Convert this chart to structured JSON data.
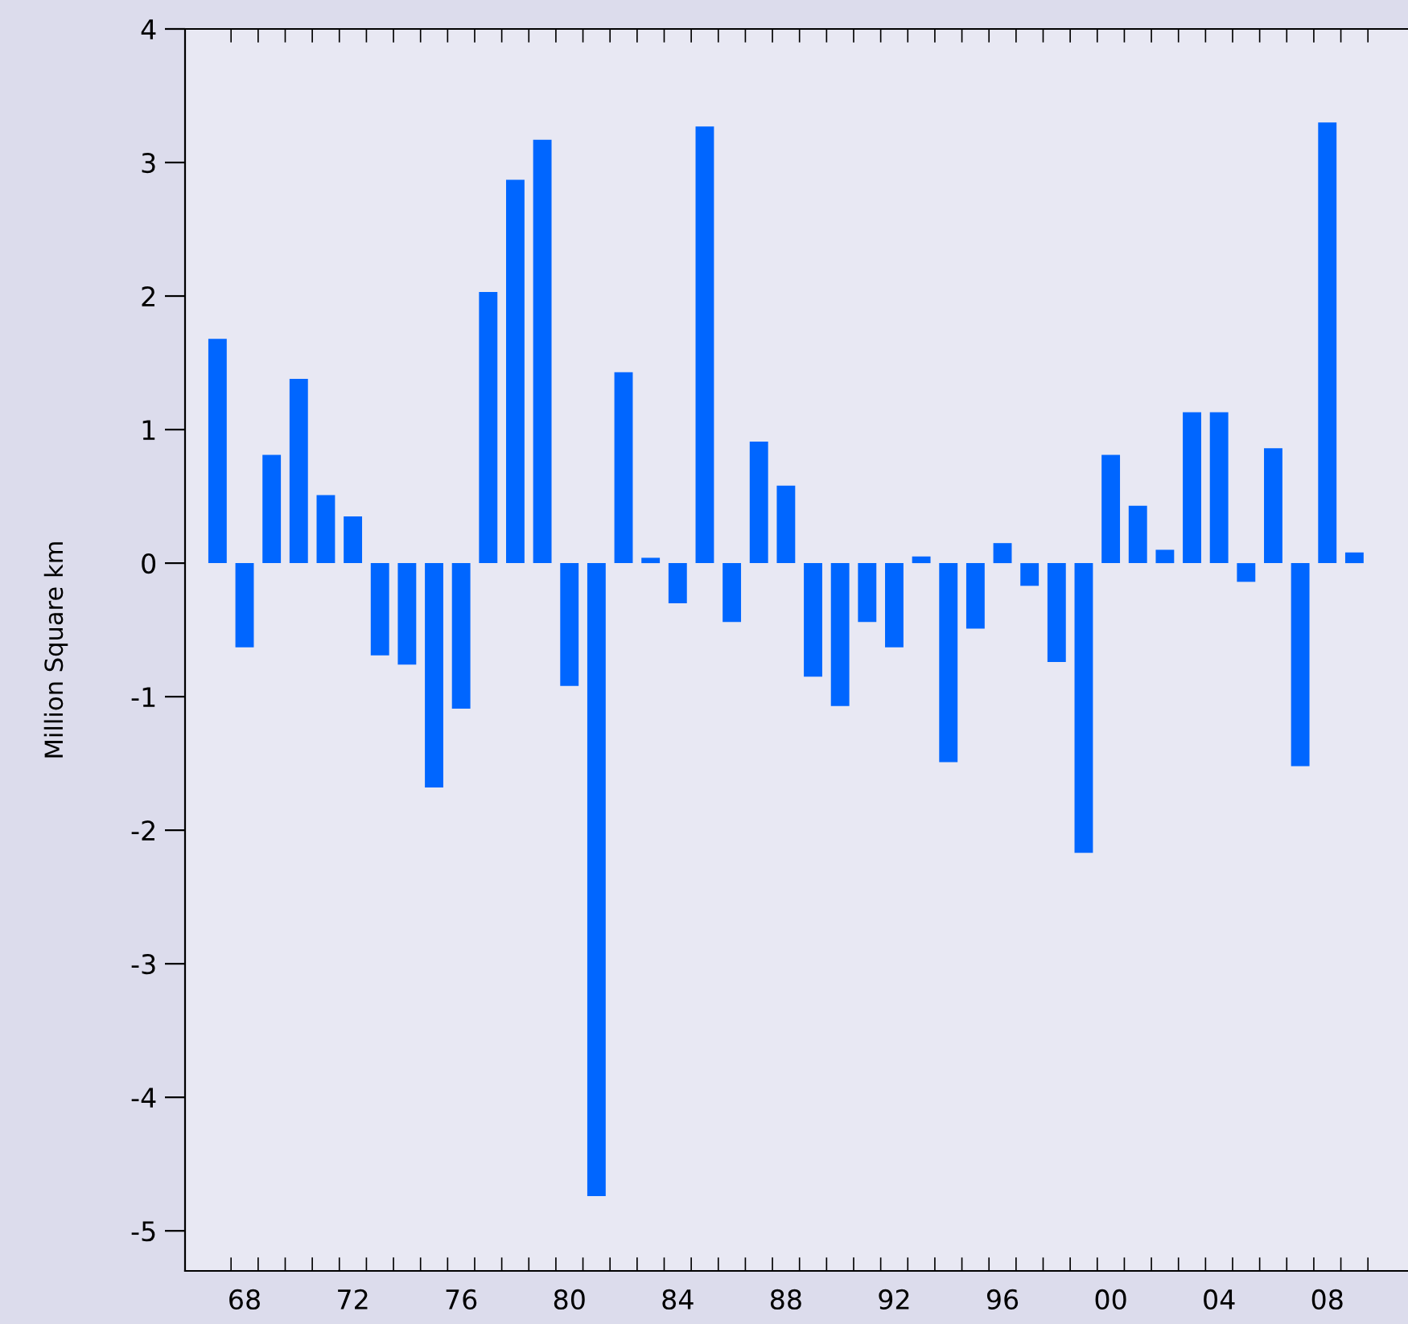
{
  "chart_data": {
    "type": "bar",
    "ylabel": "Million Square km",
    "color": "#0066ff",
    "x": [
      1967,
      1968,
      1969,
      1970,
      1971,
      1972,
      1973,
      1974,
      1975,
      1976,
      1977,
      1978,
      1979,
      1980,
      1981,
      1982,
      1983,
      1984,
      1985,
      1986,
      1987,
      1988,
      1989,
      1990,
      1991,
      1992,
      1993,
      1994,
      1995,
      1996,
      1997,
      1998,
      1999,
      2000,
      2001,
      2002,
      2003,
      2004,
      2005,
      2006,
      2007,
      2008,
      2009
    ],
    "values": [
      1.68,
      -0.63,
      0.81,
      1.38,
      0.51,
      0.35,
      -0.69,
      -0.76,
      -1.68,
      -1.09,
      2.03,
      2.87,
      3.17,
      -0.92,
      -4.74,
      1.43,
      0.04,
      -0.3,
      3.27,
      -0.44,
      0.91,
      0.58,
      -0.85,
      -1.07,
      -0.44,
      -0.63,
      0.05,
      -1.49,
      -0.49,
      0.15,
      -0.17,
      -0.74,
      -2.17,
      0.81,
      0.43,
      0.1,
      1.13,
      1.13,
      -0.14,
      0.86,
      -1.52,
      3.3,
      0.08
    ],
    "xlim": [
      1965.8,
      2011.5
    ],
    "ylim": [
      -5.3,
      4
    ],
    "xticks": [
      {
        "value": 1968,
        "label": "68"
      },
      {
        "value": 1972,
        "label": "72"
      },
      {
        "value": 1976,
        "label": "76"
      },
      {
        "value": 1980,
        "label": "80"
      },
      {
        "value": 1984,
        "label": "84"
      },
      {
        "value": 1988,
        "label": "88"
      },
      {
        "value": 1992,
        "label": "92"
      },
      {
        "value": 1996,
        "label": "96"
      },
      {
        "value": 2000,
        "label": "00"
      },
      {
        "value": 2004,
        "label": "04"
      },
      {
        "value": 2008,
        "label": "08"
      },
      {
        "value": 1967.5,
        "label": null
      },
      {
        "value": 1968.5,
        "label": null
      },
      {
        "value": 1969.5,
        "label": null
      },
      {
        "value": 1970.5,
        "label": null
      },
      {
        "value": 1971.5,
        "label": null
      },
      {
        "value": 1972.5,
        "label": null
      },
      {
        "value": 1973.5,
        "label": null
      },
      {
        "value": 1974.5,
        "label": null
      },
      {
        "value": 1975.5,
        "label": null
      },
      {
        "value": 1976.5,
        "label": null
      },
      {
        "value": 1977.5,
        "label": null
      },
      {
        "value": 1978.5,
        "label": null
      },
      {
        "value": 1979.5,
        "label": null
      },
      {
        "value": 1980.5,
        "label": null
      },
      {
        "value": 1981.5,
        "label": null
      },
      {
        "value": 1982.5,
        "label": null
      },
      {
        "value": 1983.5,
        "label": null
      },
      {
        "value": 1984.5,
        "label": null
      },
      {
        "value": 1985.5,
        "label": null
      },
      {
        "value": 1986.5,
        "label": null
      },
      {
        "value": 1987.5,
        "label": null
      },
      {
        "value": 1988.5,
        "label": null
      },
      {
        "value": 1989.5,
        "label": null
      },
      {
        "value": 1990.5,
        "label": null
      },
      {
        "value": 1991.5,
        "label": null
      },
      {
        "value": 1992.5,
        "label": null
      },
      {
        "value": 1993.5,
        "label": null
      },
      {
        "value": 1994.5,
        "label": null
      },
      {
        "value": 1995.5,
        "label": null
      },
      {
        "value": 1996.5,
        "label": null
      },
      {
        "value": 1997.5,
        "label": null
      },
      {
        "value": 1998.5,
        "label": null
      },
      {
        "value": 1999.5,
        "label": null
      },
      {
        "value": 2000.5,
        "label": null
      },
      {
        "value": 2001.5,
        "label": null
      },
      {
        "value": 2002.5,
        "label": null
      },
      {
        "value": 2003.5,
        "label": null
      },
      {
        "value": 2004.5,
        "label": null
      },
      {
        "value": 2005.5,
        "label": null
      },
      {
        "value": 2006.5,
        "label": null
      },
      {
        "value": 2007.5,
        "label": null
      },
      {
        "value": 2008.5,
        "label": null
      },
      {
        "value": 2009.5,
        "label": null
      }
    ],
    "yticks": [
      -5,
      -4,
      -3,
      -2,
      -1,
      0,
      1,
      2,
      3,
      4
    ],
    "grid": false
  }
}
